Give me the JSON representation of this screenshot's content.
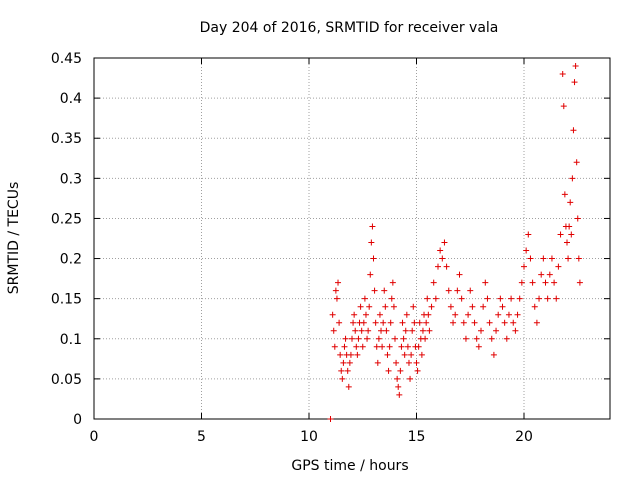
{
  "chart_data": {
    "type": "scatter",
    "title": "Day 204 of 2016, SRMTID for receiver vala",
    "xlabel": "GPS time / hours",
    "ylabel": "SRMTID / TECUs",
    "xlim": [
      0,
      24
    ],
    "ylim": [
      0,
      0.45
    ],
    "xticks": [
      0,
      5,
      10,
      15,
      20
    ],
    "yticks": [
      0,
      0.05,
      0.1,
      0.15,
      0.2,
      0.25,
      0.3,
      0.35,
      0.4,
      0.45
    ],
    "xtick_labels": [
      "0",
      "5",
      "10",
      "15",
      "20"
    ],
    "ytick_labels": [
      "0",
      "0.05",
      "0.1",
      "0.15",
      "0.2",
      "0.25",
      "0.3",
      "0.35",
      "0.4",
      "0.45"
    ],
    "grid": true,
    "marker": "+",
    "color": "#e00000",
    "series": [
      {
        "name": "SRMTID",
        "points": [
          [
            11.0,
            0.0
          ],
          [
            11.1,
            0.13
          ],
          [
            11.15,
            0.11
          ],
          [
            11.2,
            0.09
          ],
          [
            11.25,
            0.16
          ],
          [
            11.3,
            0.15
          ],
          [
            11.35,
            0.17
          ],
          [
            11.4,
            0.12
          ],
          [
            11.45,
            0.08
          ],
          [
            11.5,
            0.06
          ],
          [
            11.55,
            0.05
          ],
          [
            11.6,
            0.07
          ],
          [
            11.65,
            0.09
          ],
          [
            11.7,
            0.1
          ],
          [
            11.75,
            0.08
          ],
          [
            11.8,
            0.06
          ],
          [
            11.85,
            0.04
          ],
          [
            11.9,
            0.07
          ],
          [
            11.95,
            0.08
          ],
          [
            12.0,
            0.1
          ],
          [
            12.05,
            0.12
          ],
          [
            12.1,
            0.13
          ],
          [
            12.15,
            0.11
          ],
          [
            12.2,
            0.09
          ],
          [
            12.25,
            0.08
          ],
          [
            12.3,
            0.1
          ],
          [
            12.35,
            0.12
          ],
          [
            12.4,
            0.14
          ],
          [
            12.45,
            0.11
          ],
          [
            12.5,
            0.09
          ],
          [
            12.55,
            0.12
          ],
          [
            12.6,
            0.15
          ],
          [
            12.65,
            0.13
          ],
          [
            12.7,
            0.1
          ],
          [
            12.75,
            0.11
          ],
          [
            12.8,
            0.14
          ],
          [
            12.85,
            0.18
          ],
          [
            12.9,
            0.22
          ],
          [
            12.95,
            0.24
          ],
          [
            13.0,
            0.2
          ],
          [
            13.05,
            0.16
          ],
          [
            13.1,
            0.12
          ],
          [
            13.15,
            0.09
          ],
          [
            13.2,
            0.07
          ],
          [
            13.25,
            0.1
          ],
          [
            13.3,
            0.13
          ],
          [
            13.35,
            0.11
          ],
          [
            13.4,
            0.09
          ],
          [
            13.45,
            0.12
          ],
          [
            13.5,
            0.16
          ],
          [
            13.55,
            0.14
          ],
          [
            13.6,
            0.11
          ],
          [
            13.65,
            0.08
          ],
          [
            13.7,
            0.06
          ],
          [
            13.75,
            0.09
          ],
          [
            13.8,
            0.12
          ],
          [
            13.85,
            0.15
          ],
          [
            13.9,
            0.17
          ],
          [
            13.95,
            0.14
          ],
          [
            14.0,
            0.1
          ],
          [
            14.05,
            0.07
          ],
          [
            14.1,
            0.05
          ],
          [
            14.15,
            0.04
          ],
          [
            14.2,
            0.03
          ],
          [
            14.25,
            0.06
          ],
          [
            14.3,
            0.09
          ],
          [
            14.35,
            0.12
          ],
          [
            14.4,
            0.1
          ],
          [
            14.45,
            0.08
          ],
          [
            14.5,
            0.11
          ],
          [
            14.55,
            0.13
          ],
          [
            14.6,
            0.09
          ],
          [
            14.65,
            0.07
          ],
          [
            14.7,
            0.05
          ],
          [
            14.75,
            0.08
          ],
          [
            14.8,
            0.11
          ],
          [
            14.85,
            0.14
          ],
          [
            14.9,
            0.12
          ],
          [
            14.95,
            0.09
          ],
          [
            15.0,
            0.07
          ],
          [
            15.05,
            0.06
          ],
          [
            15.1,
            0.09
          ],
          [
            15.15,
            0.12
          ],
          [
            15.2,
            0.1
          ],
          [
            15.25,
            0.08
          ],
          [
            15.3,
            0.11
          ],
          [
            15.35,
            0.13
          ],
          [
            15.4,
            0.1
          ],
          [
            15.45,
            0.12
          ],
          [
            15.5,
            0.15
          ],
          [
            15.55,
            0.13
          ],
          [
            15.6,
            0.11
          ],
          [
            15.7,
            0.14
          ],
          [
            15.8,
            0.17
          ],
          [
            15.9,
            0.15
          ],
          [
            16.0,
            0.19
          ],
          [
            16.1,
            0.21
          ],
          [
            16.2,
            0.2
          ],
          [
            16.3,
            0.22
          ],
          [
            16.4,
            0.19
          ],
          [
            16.5,
            0.16
          ],
          [
            16.6,
            0.14
          ],
          [
            16.7,
            0.12
          ],
          [
            16.8,
            0.13
          ],
          [
            16.9,
            0.16
          ],
          [
            17.0,
            0.18
          ],
          [
            17.1,
            0.15
          ],
          [
            17.2,
            0.12
          ],
          [
            17.3,
            0.1
          ],
          [
            17.4,
            0.13
          ],
          [
            17.5,
            0.16
          ],
          [
            17.6,
            0.14
          ],
          [
            17.7,
            0.12
          ],
          [
            17.8,
            0.1
          ],
          [
            17.9,
            0.09
          ],
          [
            18.0,
            0.11
          ],
          [
            18.1,
            0.14
          ],
          [
            18.2,
            0.17
          ],
          [
            18.3,
            0.15
          ],
          [
            18.4,
            0.12
          ],
          [
            18.5,
            0.1
          ],
          [
            18.6,
            0.08
          ],
          [
            18.7,
            0.11
          ],
          [
            18.8,
            0.13
          ],
          [
            18.9,
            0.15
          ],
          [
            19.0,
            0.14
          ],
          [
            19.1,
            0.12
          ],
          [
            19.2,
            0.1
          ],
          [
            19.3,
            0.13
          ],
          [
            19.4,
            0.15
          ],
          [
            19.5,
            0.12
          ],
          [
            19.6,
            0.11
          ],
          [
            19.7,
            0.13
          ],
          [
            19.8,
            0.15
          ],
          [
            19.9,
            0.17
          ],
          [
            20.0,
            0.19
          ],
          [
            20.1,
            0.21
          ],
          [
            20.2,
            0.23
          ],
          [
            20.3,
            0.2
          ],
          [
            20.4,
            0.17
          ],
          [
            20.5,
            0.14
          ],
          [
            20.6,
            0.12
          ],
          [
            20.7,
            0.15
          ],
          [
            20.8,
            0.18
          ],
          [
            20.9,
            0.2
          ],
          [
            21.0,
            0.17
          ],
          [
            21.1,
            0.15
          ],
          [
            21.2,
            0.18
          ],
          [
            21.3,
            0.2
          ],
          [
            21.4,
            0.17
          ],
          [
            21.5,
            0.15
          ],
          [
            21.6,
            0.19
          ],
          [
            21.7,
            0.23
          ],
          [
            21.8,
            0.43
          ],
          [
            21.85,
            0.39
          ],
          [
            21.9,
            0.28
          ],
          [
            21.95,
            0.24
          ],
          [
            22.0,
            0.22
          ],
          [
            22.05,
            0.2
          ],
          [
            22.1,
            0.24
          ],
          [
            22.15,
            0.27
          ],
          [
            22.2,
            0.23
          ],
          [
            22.25,
            0.3
          ],
          [
            22.3,
            0.36
          ],
          [
            22.35,
            0.42
          ],
          [
            22.4,
            0.44
          ],
          [
            22.45,
            0.32
          ],
          [
            22.5,
            0.25
          ],
          [
            22.55,
            0.2
          ],
          [
            22.6,
            0.17
          ]
        ]
      }
    ]
  }
}
